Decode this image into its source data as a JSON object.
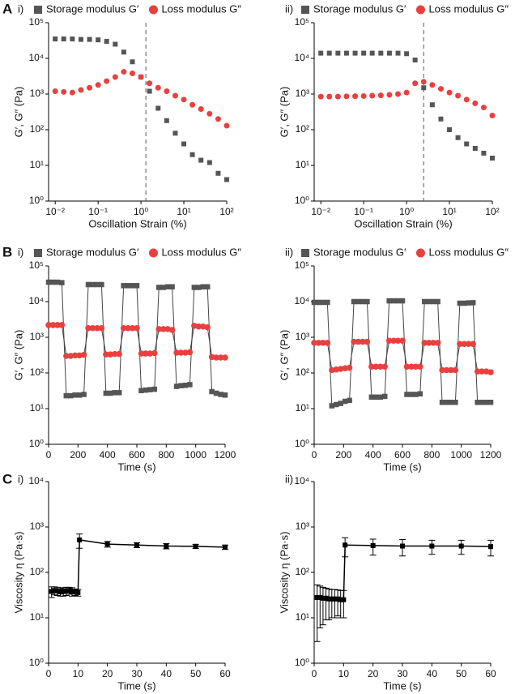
{
  "chart_data": [
    {
      "type": "scatter",
      "panel_label": "A",
      "subpanel": "i)",
      "xlabel": "Oscillation Strain (%)",
      "ylabel": "G′, G″ (Pa)",
      "xscale": "log",
      "yscale": "log",
      "xlim": [
        0.007,
        100
      ],
      "ylim": [
        1,
        100000
      ],
      "xticks": [
        {
          "value": 0.01,
          "label": "10⁻²"
        },
        {
          "value": 0.1,
          "label": "10⁻¹"
        },
        {
          "value": 1,
          "label": "10⁰"
        },
        {
          "value": 10,
          "label": "10¹"
        },
        {
          "value": 100,
          "label": "10²"
        }
      ],
      "yticks": [
        {
          "value": 1,
          "label": "10⁰"
        },
        {
          "value": 10,
          "label": "10¹"
        },
        {
          "value": 100,
          "label": "10²"
        },
        {
          "value": 1000,
          "label": "10³"
        },
        {
          "value": 10000,
          "label": "10⁴"
        },
        {
          "value": 100000,
          "label": "10⁵"
        }
      ],
      "vline": 1.3,
      "x": [
        0.01,
        0.0158,
        0.0251,
        0.0398,
        0.0631,
        0.1,
        0.158,
        0.251,
        0.398,
        0.631,
        1,
        1.58,
        2.51,
        3.98,
        6.31,
        10,
        15.8,
        25.1,
        39.8,
        63.1,
        100
      ],
      "series": [
        {
          "name": "Storage modulus G′",
          "color": "#555555",
          "marker": "square",
          "values": [
            35000,
            35000,
            35000,
            34000,
            34000,
            33000,
            30000,
            25000,
            15000,
            8000,
            3000,
            1200,
            400,
            180,
            80,
            40,
            20,
            14,
            12,
            6,
            4
          ]
        },
        {
          "name": "Loss modulus G″",
          "color": "#e8403f",
          "marker": "circle",
          "values": [
            1200,
            1150,
            1100,
            1300,
            1500,
            1800,
            2300,
            3000,
            4200,
            3800,
            3000,
            2000,
            1500,
            1200,
            900,
            700,
            500,
            380,
            280,
            200,
            130
          ]
        }
      ]
    },
    {
      "type": "scatter",
      "subpanel": "ii)",
      "xlabel": "Oscillation Strain (%)",
      "ylabel": "G′, G″ (Pa)",
      "xscale": "log",
      "yscale": "log",
      "xlim": [
        0.007,
        100
      ],
      "ylim": [
        1,
        100000
      ],
      "xticks": [
        {
          "value": 0.01,
          "label": "10⁻²"
        },
        {
          "value": 0.1,
          "label": "10⁻¹"
        },
        {
          "value": 1,
          "label": "10⁰"
        },
        {
          "value": 10,
          "label": "10¹"
        },
        {
          "value": 100,
          "label": "10²"
        }
      ],
      "yticks": [
        {
          "value": 1,
          "label": "10⁰"
        },
        {
          "value": 10,
          "label": "10¹"
        },
        {
          "value": 100,
          "label": "10²"
        },
        {
          "value": 1000,
          "label": "10³"
        },
        {
          "value": 10000,
          "label": "10⁴"
        },
        {
          "value": 100000,
          "label": "10⁵"
        }
      ],
      "vline": 2.5,
      "x": [
        0.01,
        0.0158,
        0.0251,
        0.0398,
        0.0631,
        0.1,
        0.158,
        0.251,
        0.398,
        0.631,
        1,
        1.58,
        2.51,
        3.98,
        6.31,
        10,
        15.8,
        25.1,
        39.8,
        63.1,
        100
      ],
      "series": [
        {
          "name": "Storage modulus G′",
          "color": "#555555",
          "marker": "square",
          "values": [
            14000,
            14000,
            14000,
            14000,
            14000,
            14000,
            14000,
            14000,
            14000,
            14000,
            13500,
            9000,
            1500,
            500,
            200,
            100,
            60,
            40,
            30,
            22,
            16
          ]
        },
        {
          "name": "Loss modulus G″",
          "color": "#e8403f",
          "marker": "circle",
          "values": [
            850,
            850,
            850,
            860,
            870,
            880,
            900,
            920,
            950,
            1000,
            1100,
            2000,
            2200,
            1800,
            1400,
            1100,
            900,
            700,
            550,
            420,
            250
          ]
        }
      ]
    },
    {
      "type": "line",
      "panel_label": "B",
      "subpanel": "i)",
      "xlabel": "Time (s)",
      "ylabel": "G′, G″ (Pa)",
      "yscale": "log",
      "xlim": [
        0,
        1200
      ],
      "ylim": [
        1,
        100000
      ],
      "xticks": [
        0,
        200,
        400,
        600,
        800,
        1000,
        1200
      ],
      "yticks": [
        {
          "value": 1,
          "label": "10⁰"
        },
        {
          "value": 10,
          "label": "10¹"
        },
        {
          "value": 100,
          "label": "10²"
        },
        {
          "value": 1000,
          "label": "10³"
        },
        {
          "value": 10000,
          "label": "10⁴"
        },
        {
          "value": 100000,
          "label": "10⁵"
        }
      ],
      "x": [
        0,
        30,
        60,
        90,
        120,
        150,
        180,
        210,
        240,
        270,
        300,
        330,
        360,
        390,
        420,
        450,
        480,
        510,
        540,
        570,
        600,
        630,
        660,
        690,
        720,
        750,
        780,
        810,
        840,
        870,
        900,
        930,
        960,
        990,
        1020,
        1050,
        1080,
        1110,
        1140,
        1170,
        1200
      ],
      "series": [
        {
          "name": "Storage modulus G′",
          "color": "#555555",
          "marker": "square",
          "values": [
            35000,
            35000,
            35000,
            34000,
            23,
            23,
            24,
            24,
            25,
            30000,
            30000,
            30000,
            30000,
            27,
            27,
            28,
            28,
            28000,
            28000,
            28000,
            28000,
            32,
            33,
            34,
            35,
            25000,
            25000,
            26000,
            26000,
            42,
            44,
            45,
            47,
            25000,
            25000,
            26000,
            26000,
            30,
            27,
            25,
            24
          ]
        },
        {
          "name": "Loss modulus G″",
          "color": "#e8403f",
          "marker": "circle",
          "values": [
            2200,
            2200,
            2200,
            2200,
            300,
            300,
            310,
            310,
            320,
            1800,
            1800,
            1800,
            1800,
            330,
            330,
            340,
            340,
            1800,
            1800,
            1800,
            1800,
            350,
            350,
            350,
            360,
            1700,
            1700,
            1700,
            1600,
            370,
            370,
            370,
            380,
            2100,
            2000,
            2000,
            1900,
            280,
            270,
            270,
            270
          ]
        }
      ]
    },
    {
      "type": "line",
      "subpanel": "ii)",
      "xlabel": "Time (s)",
      "ylabel": "G′, G″ (Pa)",
      "yscale": "log",
      "xlim": [
        0,
        1200
      ],
      "ylim": [
        1,
        100000
      ],
      "xticks": [
        0,
        200,
        400,
        600,
        800,
        1000,
        1200
      ],
      "yticks": [
        {
          "value": 1,
          "label": "10⁰"
        },
        {
          "value": 10,
          "label": "10¹"
        },
        {
          "value": 100,
          "label": "10²"
        },
        {
          "value": 1000,
          "label": "10³"
        },
        {
          "value": 10000,
          "label": "10⁴"
        },
        {
          "value": 100000,
          "label": "10⁵"
        }
      ],
      "x": [
        0,
        30,
        60,
        90,
        120,
        150,
        180,
        210,
        240,
        270,
        300,
        330,
        360,
        390,
        420,
        450,
        480,
        510,
        540,
        570,
        600,
        630,
        660,
        690,
        720,
        750,
        780,
        810,
        840,
        870,
        900,
        930,
        960,
        990,
        1020,
        1050,
        1080,
        1110,
        1140,
        1170,
        1200
      ],
      "series": [
        {
          "name": "Storage modulus G′",
          "color": "#555555",
          "marker": "square",
          "values": [
            9500,
            9500,
            9500,
            9500,
            12,
            13,
            14,
            16,
            17,
            10000,
            10000,
            10000,
            10000,
            21,
            21,
            21,
            22,
            10500,
            10500,
            10500,
            10500,
            25,
            25,
            25,
            26,
            10000,
            10000,
            10000,
            10000,
            15,
            15,
            15,
            15,
            9000,
            9000,
            9200,
            9300,
            15,
            15,
            15,
            15
          ]
        },
        {
          "name": "Loss modulus G″",
          "color": "#e8403f",
          "marker": "circle",
          "values": [
            700,
            700,
            700,
            700,
            120,
            125,
            130,
            135,
            140,
            750,
            750,
            750,
            750,
            150,
            150,
            150,
            150,
            800,
            800,
            800,
            800,
            150,
            150,
            150,
            150,
            700,
            700,
            700,
            700,
            120,
            120,
            120,
            120,
            650,
            650,
            650,
            650,
            110,
            110,
            110,
            105
          ]
        }
      ]
    },
    {
      "type": "line",
      "panel_label": "C",
      "subpanel": "i)",
      "xlabel": "Time (s)",
      "ylabel": "Viscosity η (Pa·s)",
      "yscale": "log",
      "xlim": [
        0,
        60
      ],
      "ylim": [
        1,
        10000
      ],
      "xticks": [
        0,
        10,
        20,
        30,
        40,
        50,
        60
      ],
      "yticks": [
        {
          "value": 1,
          "label": "10⁰"
        },
        {
          "value": 10,
          "label": "10¹"
        },
        {
          "value": 100,
          "label": "10²"
        },
        {
          "value": 1000,
          "label": "10³"
        },
        {
          "value": 10000,
          "label": "10⁴"
        }
      ],
      "x": [
        1,
        2,
        3,
        4,
        5,
        6,
        7,
        8,
        9,
        10,
        10.5,
        20,
        30,
        40,
        50,
        60
      ],
      "series": [
        {
          "color": "#000000",
          "marker": "square",
          "values": [
            38,
            40,
            39,
            37,
            38,
            39,
            40,
            38,
            37,
            36,
            520,
            420,
            400,
            380,
            375,
            360
          ],
          "errors": [
            10,
            8,
            8,
            7,
            8,
            8,
            7,
            8,
            6,
            6,
            180,
            60,
            50,
            50,
            40,
            40
          ]
        }
      ]
    },
    {
      "type": "line",
      "subpanel": "ii)",
      "xlabel": "Time (s)",
      "ylabel": "Viscosity η (Pa·s)",
      "yscale": "log",
      "xlim": [
        0,
        60
      ],
      "ylim": [
        1,
        10000
      ],
      "xticks": [
        0,
        10,
        20,
        30,
        40,
        50,
        60
      ],
      "yticks": [
        {
          "value": 1,
          "label": "10⁰"
        },
        {
          "value": 10,
          "label": "10¹"
        },
        {
          "value": 100,
          "label": "10²"
        },
        {
          "value": 1000,
          "label": "10³"
        },
        {
          "value": 10000,
          "label": "10⁴"
        }
      ],
      "x": [
        1,
        2,
        3,
        4,
        5,
        6,
        7,
        8,
        9,
        10,
        10.5,
        20,
        30,
        40,
        50,
        60
      ],
      "series": [
        {
          "color": "#000000",
          "marker": "square",
          "values": [
            28,
            28,
            27,
            27,
            26,
            26,
            26,
            26,
            25,
            25,
            400,
            390,
            380,
            380,
            380,
            370
          ],
          "errors": [
            25,
            22,
            20,
            18,
            17,
            16,
            16,
            15,
            15,
            15,
            180,
            150,
            150,
            130,
            130,
            140
          ]
        }
      ]
    }
  ]
}
